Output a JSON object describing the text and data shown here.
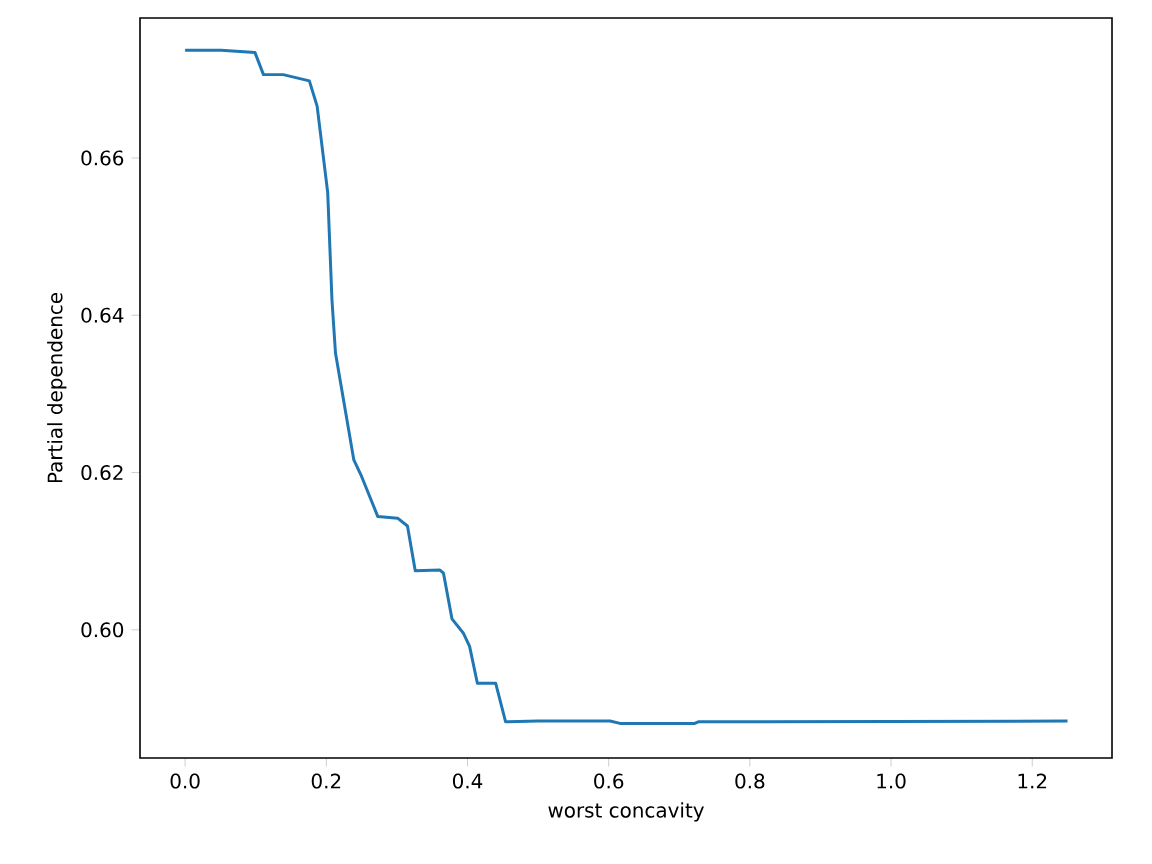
{
  "chart_data": {
    "type": "line",
    "xlabel": "worst concavity",
    "ylabel": "Partial dependence",
    "x": [
      0.0,
      0.051,
      0.099,
      0.111,
      0.139,
      0.176,
      0.187,
      0.202,
      0.208,
      0.213,
      0.239,
      0.25,
      0.273,
      0.301,
      0.315,
      0.326,
      0.361,
      0.366,
      0.378,
      0.394,
      0.403,
      0.414,
      0.44,
      0.454,
      0.5,
      0.602,
      0.616,
      0.722,
      0.727,
      1.25
    ],
    "series": [
      {
        "color": "#1f77b4",
        "values": [
          0.6737,
          0.6737,
          0.6734,
          0.6706,
          0.6706,
          0.6698,
          0.6666,
          0.6556,
          0.642,
          0.6352,
          0.6216,
          0.6195,
          0.6144,
          0.6142,
          0.6132,
          0.6075,
          0.6076,
          0.6072,
          0.6014,
          0.5996,
          0.5979,
          0.5932,
          0.5932,
          0.5883,
          0.5884,
          0.5884,
          0.5881,
          0.5881,
          0.5883,
          0.5884
        ]
      }
    ],
    "xlim": [
      -0.0639,
      1.313
    ],
    "ylim": [
      0.5837,
      0.6778
    ],
    "xticks": [
      {
        "value": 0.0,
        "label": "0.0"
      },
      {
        "value": 0.2,
        "label": "0.2"
      },
      {
        "value": 0.4,
        "label": "0.4"
      },
      {
        "value": 0.6,
        "label": "0.6"
      },
      {
        "value": 0.8,
        "label": "0.8"
      },
      {
        "value": 1.0,
        "label": "1.0"
      },
      {
        "value": 1.2,
        "label": "1.2"
      }
    ],
    "yticks": [
      {
        "value": 0.6,
        "label": "0.60"
      },
      {
        "value": 0.62,
        "label": "0.62"
      },
      {
        "value": 0.64,
        "label": "0.64"
      },
      {
        "value": 0.66,
        "label": "0.66"
      }
    ],
    "grid": false,
    "marker": "none",
    "line_style": "solid"
  }
}
